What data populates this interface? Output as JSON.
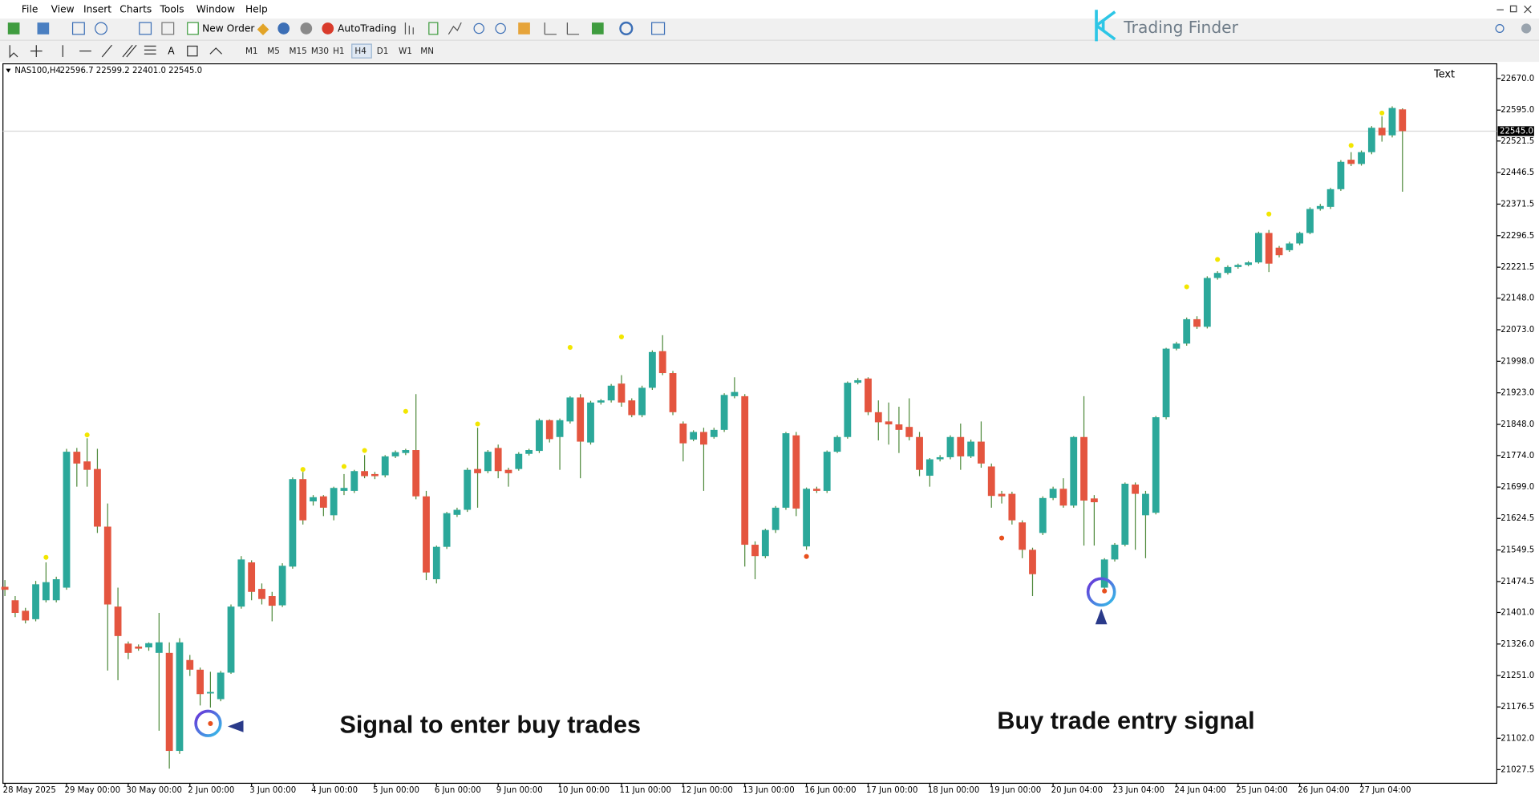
{
  "menu": [
    "File",
    "View",
    "Insert",
    "Charts",
    "Tools",
    "Window",
    "Help"
  ],
  "toolbar": {
    "new_order": "New Order",
    "auto_trading": "AutoTrading"
  },
  "timeframes": [
    "M1",
    "M5",
    "M15",
    "M30",
    "H1",
    "H4",
    "D1",
    "W1",
    "MN"
  ],
  "logo": "Trading Finder",
  "chart_data": {
    "type": "candlestick",
    "symbol": "NAS100,H4",
    "ohlc_label": "22596.7 22599.2 22401.0 22545.0",
    "text_object": "Text",
    "annotations": [
      "Signal to enter buy trades",
      "Buy trade entry signal"
    ],
    "up_color": "#2ba89a",
    "down_color": "#e4553f",
    "wick_color": "#4f8a3c",
    "categories": [
      "28 May 2025",
      null,
      null,
      null,
      null,
      null,
      "29 May 00:00",
      null,
      null,
      null,
      null,
      null,
      "30 May 00:00",
      null,
      null,
      null,
      null,
      null,
      "2 Jun 00:00",
      null,
      null,
      null,
      null,
      null,
      "3 Jun 00:00",
      null,
      null,
      null,
      null,
      null,
      "4 Jun 00:00",
      null,
      null,
      null,
      null,
      null,
      "5 Jun 00:00",
      null,
      null,
      null,
      null,
      null,
      "6 Jun 00:00",
      null,
      null,
      null,
      null,
      null,
      "9 Jun 00:00",
      null,
      null,
      null,
      null,
      null,
      "10 Jun 00:00",
      null,
      null,
      null,
      null,
      null,
      "11 Jun 00:00",
      null,
      null,
      null,
      null,
      null,
      "12 Jun 00:00",
      null,
      null,
      null,
      null,
      null,
      "13 Jun 00:00",
      null,
      null,
      null,
      null,
      null,
      "16 Jun 00:00",
      null,
      null,
      null,
      null,
      null,
      "17 Jun 00:00",
      null,
      null,
      null,
      null,
      null,
      "18 Jun 00:00",
      null,
      null,
      null,
      null,
      null,
      "19 Jun 00:00",
      null,
      null,
      null,
      null,
      null,
      "20 Jun 04:00",
      null,
      null,
      null,
      null,
      null,
      "23 Jun 04:00",
      null,
      null,
      null,
      null,
      null,
      "24 Jun 04:00",
      null,
      null,
      null,
      null,
      null,
      "25 Jun 04:00",
      null,
      null,
      null,
      null,
      null,
      "26 Jun 04:00",
      null,
      null,
      null,
      null,
      null,
      "27 Jun 04:00",
      null,
      null,
      null,
      null
    ],
    "open": [
      21462,
      21430,
      21405,
      21385,
      21430,
      21430,
      21460,
      21783,
      21760,
      21742,
      21605,
      21415,
      21327,
      21320,
      21318,
      21305,
      21305,
      21072,
      21288,
      21265,
      21210,
      21195,
      21258,
      21415,
      21520,
      21457,
      21440,
      21418,
      21510,
      21718,
      21665,
      21677,
      21632,
      21690,
      21690,
      21737,
      21730,
      21727,
      21772,
      21780,
      21787,
      21677,
      21480,
      21557,
      21633,
      21645,
      21742,
      21737,
      21792,
      21740,
      21742,
      21778,
      21785,
      21858,
      21818,
      21855,
      21912,
      21805,
      21900,
      21905,
      21945,
      21905,
      21870,
      21935,
      22022,
      21970,
      21850,
      21812,
      21830,
      21818,
      21835,
      21915,
      21915,
      21562,
      21535,
      21597,
      21650,
      21822,
      21558,
      21695,
      21690,
      21783,
      21818,
      21947,
      21957,
      21877,
      21855,
      21848,
      21842,
      21818,
      21726,
      21765,
      21770,
      21818,
      21772,
      21807,
      21748,
      21683,
      21683,
      21615,
      21550,
      21590,
      21673,
      21695,
      21655,
      21818,
      21672,
      21460,
      21527,
      21562,
      21705,
      21632,
      21638,
      21865,
      22028,
      22040,
      22098,
      22080,
      22196,
      22208,
      22222,
      22227,
      22233,
      22303,
      22268,
      22262,
      22278,
      22303,
      22360,
      22365,
      22407,
      22477,
      22467,
      22495,
      22553,
      22535,
      22596.7
    ],
    "high": [
      21478,
      21440,
      21412,
      21476,
      21520,
      21486,
      21790,
      21792,
      21815,
      21790,
      21660,
      21460,
      21332,
      21325,
      21330,
      21400,
      21330,
      21340,
      21300,
      21270,
      21260,
      21262,
      21420,
      21535,
      21525,
      21470,
      21450,
      21518,
      21722,
      21735,
      21680,
      21680,
      21700,
      21730,
      21740,
      21775,
      21735,
      21775,
      21786,
      21790,
      21920,
      21690,
      21560,
      21640,
      21650,
      21745,
      21840,
      21787,
      21800,
      21745,
      21782,
      21790,
      21862,
      21860,
      21862,
      21915,
      21920,
      21904,
      21908,
      21944,
      21965,
      21910,
      21940,
      22024,
      22060,
      21975,
      21855,
      21834,
      21840,
      21840,
      21922,
      21960,
      21920,
      21570,
      21600,
      21654,
      21830,
      21830,
      21698,
      21700,
      21786,
      21822,
      21950,
      21958,
      21960,
      21905,
      21900,
      21890,
      21910,
      21830,
      21768,
      21775,
      21822,
      21850,
      21812,
      21855,
      21755,
      21690,
      21688,
      21620,
      21555,
      21677,
      21700,
      21720,
      21820,
      21915,
      21680,
      21530,
      21566,
      21710,
      21710,
      21690,
      21868,
      22030,
      22044,
      22102,
      22105,
      22200,
      22212,
      22226,
      22230,
      22236,
      22306,
      22310,
      22272,
      22282,
      22306,
      22364,
      22372,
      22410,
      22476,
      22495,
      22499,
      22557,
      22580,
      22604,
      22599.2
    ],
    "low": [
      21440,
      21390,
      21375,
      21380,
      21425,
      21425,
      21455,
      21700,
      21700,
      21590,
      21263,
      21240,
      21290,
      21310,
      21310,
      21120,
      21030,
      21065,
      21250,
      21180,
      21175,
      21190,
      21255,
      21410,
      21430,
      21420,
      21380,
      21414,
      21505,
      21610,
      21655,
      21630,
      21620,
      21680,
      21685,
      21720,
      21718,
      21722,
      21768,
      21775,
      21670,
      21478,
      21470,
      21552,
      21628,
      21640,
      21650,
      21732,
      21720,
      21700,
      21738,
      21774,
      21780,
      21805,
      21740,
      21850,
      21720,
      21800,
      21895,
      21900,
      21890,
      21865,
      21865,
      21930,
      21965,
      21870,
      21760,
      21808,
      21690,
      21814,
      21830,
      21910,
      21510,
      21480,
      21530,
      21590,
      21645,
      21630,
      21550,
      21685,
      21685,
      21780,
      21814,
      21943,
      21870,
      21810,
      21800,
      21780,
      21810,
      21725,
      21700,
      21760,
      21765,
      21740,
      21768,
      21745,
      21650,
      21660,
      21610,
      21530,
      21440,
      21585,
      21668,
      21650,
      21650,
      21560,
      21560,
      21455,
      21522,
      21558,
      21550,
      21530,
      21634,
      21860,
      22024,
      22035,
      22075,
      22076,
      22192,
      22204,
      22218,
      22224,
      22230,
      22210,
      22245,
      22258,
      22274,
      22300,
      22356,
      22360,
      22403,
      22462,
      22463,
      22490,
      22520,
      22530,
      22401
    ],
    "close": [
      21455,
      21400,
      21382,
      21468,
      21473,
      21480,
      21783,
      21755,
      21740,
      21605,
      21420,
      21345,
      21305,
      21315,
      21328,
      21330,
      21072,
      21330,
      21265,
      21207,
      21212,
      21258,
      21415,
      21527,
      21450,
      21433,
      21417,
      21512,
      21718,
      21620,
      21675,
      21650,
      21697,
      21697,
      21737,
      21725,
      21725,
      21772,
      21782,
      21787,
      21677,
      21496,
      21557,
      21637,
      21645,
      21740,
      21732,
      21783,
      21737,
      21732,
      21778,
      21787,
      21858,
      21813,
      21858,
      21912,
      21807,
      21900,
      21905,
      21940,
      21900,
      21870,
      21935,
      22020,
      21970,
      21877,
      21803,
      21830,
      21800,
      21835,
      21918,
      21925,
      21562,
      21535,
      21597,
      21650,
      21827,
      21648,
      21695,
      21690,
      21783,
      21818,
      21947,
      21953,
      21877,
      21853,
      21848,
      21835,
      21818,
      21740,
      21765,
      21770,
      21818,
      21772,
      21807,
      21755,
      21678,
      21677,
      21620,
      21550,
      21492,
      21673,
      21695,
      21655,
      21818,
      21667,
      21663,
      21527,
      21562,
      21707,
      21683,
      21683,
      21865,
      22028,
      22040,
      22098,
      22080,
      22196,
      22208,
      22222,
      22227,
      22233,
      22303,
      22230,
      22250,
      22278,
      22303,
      22360,
      22367,
      22407,
      22472,
      22467,
      22495,
      22553,
      22535,
      22600,
      22545
    ],
    "markers": [
      {
        "color": "#f2e600",
        "x": [
          4,
          8,
          29,
          33,
          35,
          39,
          46,
          55,
          60,
          115,
          118,
          123,
          131,
          134
        ],
        "values": [
          21532,
          21823,
          21741,
          21748,
          21786,
          21879,
          21849,
          22031,
          22056,
          22175,
          22240,
          22348,
          22511,
          22588
        ]
      },
      {
        "color": "#e8501e",
        "x": [
          20,
          78,
          97,
          107
        ],
        "values": [
          21137,
          21534,
          21578,
          21452
        ]
      }
    ],
    "last_price": {
      "value": 22545,
      "label": "22545.0"
    },
    "ylim": [
      20995,
      22705
    ],
    "yticks": [
      {
        "value": 22670,
        "label": "22670.0"
      },
      {
        "value": 22595,
        "label": "22595.0"
      },
      {
        "value": 22521.5,
        "label": "22521.5"
      },
      {
        "value": 22446.5,
        "label": "22446.5"
      },
      {
        "value": 22371.5,
        "label": "22371.5"
      },
      {
        "value": 22296.5,
        "label": "22296.5"
      },
      {
        "value": 22221.5,
        "label": "22221.5"
      },
      {
        "value": 22148,
        "label": "22148.0"
      },
      {
        "value": 22073,
        "label": "22073.0"
      },
      {
        "value": 21998,
        "label": "21998.0"
      },
      {
        "value": 21923,
        "label": "21923.0"
      },
      {
        "value": 21848,
        "label": "21848.0"
      },
      {
        "value": 21774,
        "label": "21774.0"
      },
      {
        "value": 21699,
        "label": "21699.0"
      },
      {
        "value": 21624.5,
        "label": "21624.5"
      },
      {
        "value": 21549.5,
        "label": "21549.5"
      },
      {
        "value": 21474.5,
        "label": "21474.5"
      },
      {
        "value": 21401,
        "label": "21401.0"
      },
      {
        "value": 21326,
        "label": "21326.0"
      },
      {
        "value": 21251,
        "label": "21251.0"
      },
      {
        "value": 21176.5,
        "label": "21176.5"
      },
      {
        "value": 21102,
        "label": "21102.0"
      },
      {
        "value": 21027.5,
        "label": "21027.5"
      }
    ],
    "grid": false
  }
}
